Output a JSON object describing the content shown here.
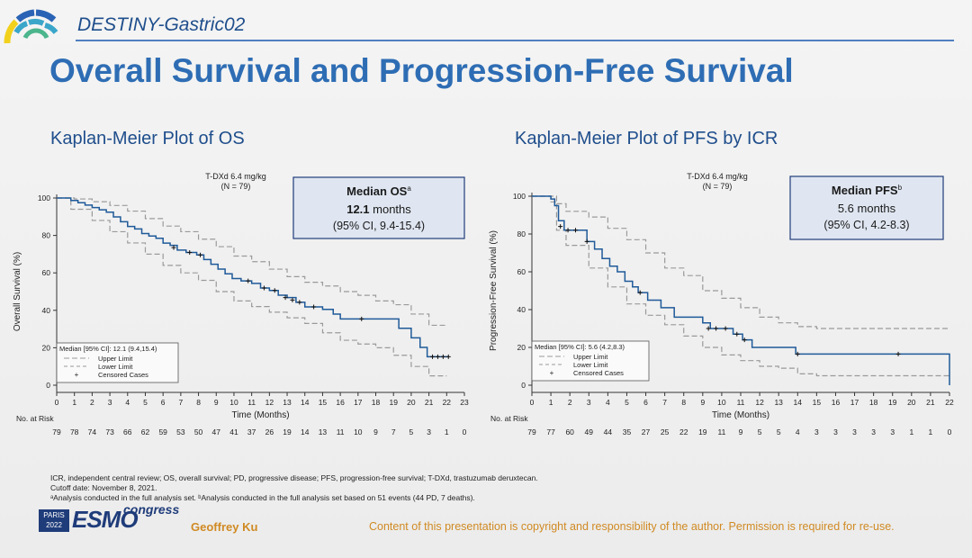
{
  "header": {
    "study_name": "DESTINY-Gastric02",
    "slide_title": "Overall Survival and Progression-Free Survival"
  },
  "colors": {
    "title_blue": "#2e6db4",
    "km_line": "#1f5a99",
    "ci_line": "#9a9a9a",
    "box_fill": "#dfe6f1",
    "box_border": "#1f3c7a",
    "accent_orange": "#d08a23"
  },
  "chart_data": [
    {
      "type": "line",
      "panel_title": "Kaplan-Meier Plot of OS",
      "series_header": "T-DXd 6.4 mg/kg",
      "series_n": "(N = 79)",
      "median_box": {
        "title": "Median OS",
        "title_sup": "a",
        "value": "12.1",
        "unit": " months",
        "ci": "(95% CI, 9.4-15.4)"
      },
      "xlabel": "Time (Months)",
      "ylabel": "Overall Survival (%)",
      "xlim": [
        0,
        23
      ],
      "ylim": [
        0,
        100
      ],
      "xticks": [
        0,
        1,
        2,
        3,
        4,
        5,
        6,
        7,
        8,
        9,
        10,
        11,
        12,
        13,
        14,
        15,
        16,
        17,
        18,
        19,
        20,
        21,
        22,
        23
      ],
      "yticks": [
        0,
        20,
        40,
        60,
        80,
        100
      ],
      "legend": {
        "title": "Median [95% CI]: 12.1 (9.4,15.4)",
        "upper": "Upper Limit",
        "lower": "Lower Limit",
        "censored": "Censored Cases"
      },
      "series": [
        {
          "name": "KM",
          "points": [
            [
              0,
              100
            ],
            [
              0.8,
              98.7
            ],
            [
              1.2,
              97.5
            ],
            [
              1.6,
              96.2
            ],
            [
              2,
              94.9
            ],
            [
              2.4,
              93.7
            ],
            [
              2.8,
              92.4
            ],
            [
              3.2,
              89.9
            ],
            [
              3.6,
              87.3
            ],
            [
              4,
              84.8
            ],
            [
              4.4,
              83.5
            ],
            [
              4.8,
              81
            ],
            [
              5.2,
              79.7
            ],
            [
              5.6,
              78.5
            ],
            [
              6,
              75.9
            ],
            [
              6.4,
              74.7
            ],
            [
              6.8,
              72.2
            ],
            [
              7.3,
              70.9
            ],
            [
              7.9,
              69.6
            ],
            [
              8.3,
              67.1
            ],
            [
              8.7,
              64.6
            ],
            [
              9.1,
              62.0
            ],
            [
              9.5,
              59.5
            ],
            [
              9.9,
              57.0
            ],
            [
              10.4,
              55.7
            ],
            [
              11,
              54.4
            ],
            [
              11.5,
              51.9
            ],
            [
              12,
              50.6
            ],
            [
              12.5,
              48.1
            ],
            [
              13,
              46.8
            ],
            [
              13.5,
              44.3
            ],
            [
              14,
              41.8
            ],
            [
              15,
              40.5
            ],
            [
              15.6,
              38
            ],
            [
              16,
              35.4
            ],
            [
              17.2,
              35.4
            ],
            [
              18.5,
              35.4
            ],
            [
              19.3,
              30.4
            ],
            [
              20,
              25.3
            ],
            [
              20.5,
              20.2
            ],
            [
              20.9,
              15.2
            ],
            [
              22.1,
              15.2
            ]
          ]
        },
        {
          "name": "Upper Limit",
          "points": [
            [
              0,
              100
            ],
            [
              1,
              99.5
            ],
            [
              2,
              98
            ],
            [
              3,
              96
            ],
            [
              4,
              93
            ],
            [
              5,
              89
            ],
            [
              6,
              85
            ],
            [
              7,
              82
            ],
            [
              8,
              78
            ],
            [
              9,
              74
            ],
            [
              10,
              69
            ],
            [
              11,
              66
            ],
            [
              12,
              62
            ],
            [
              13,
              58
            ],
            [
              14,
              55
            ],
            [
              15,
              53
            ],
            [
              16,
              50
            ],
            [
              17,
              48
            ],
            [
              18,
              45
            ],
            [
              19,
              43
            ],
            [
              20,
              38
            ],
            [
              21,
              32
            ],
            [
              22,
              32
            ]
          ]
        },
        {
          "name": "Lower Limit",
          "points": [
            [
              0,
              100
            ],
            [
              0.8,
              94
            ],
            [
              2,
              88
            ],
            [
              3,
              82
            ],
            [
              4,
              76
            ],
            [
              5,
              70
            ],
            [
              6,
              64
            ],
            [
              7,
              60
            ],
            [
              8,
              56
            ],
            [
              9,
              50
            ],
            [
              10,
              45
            ],
            [
              11,
              42
            ],
            [
              12,
              39
            ],
            [
              13,
              36
            ],
            [
              14,
              33
            ],
            [
              15,
              28
            ],
            [
              16,
              24
            ],
            [
              17,
              22
            ],
            [
              18,
              20
            ],
            [
              19,
              16
            ],
            [
              20,
              10
            ],
            [
              21,
              5
            ],
            [
              22,
              5
            ]
          ]
        }
      ],
      "censored": [
        [
          6.6,
          73.5
        ],
        [
          7.5,
          70.9
        ],
        [
          8.1,
          69.6
        ],
        [
          10.8,
          55.7
        ],
        [
          11.7,
          51.9
        ],
        [
          12.3,
          50.6
        ],
        [
          12.9,
          46.8
        ],
        [
          13.3,
          45.5
        ],
        [
          13.7,
          44.3
        ],
        [
          14.5,
          41.8
        ],
        [
          17.2,
          35.4
        ],
        [
          21.2,
          15.2
        ],
        [
          21.5,
          15.2
        ],
        [
          21.8,
          15.2
        ],
        [
          22.1,
          15.2
        ]
      ],
      "at_risk_label": "No. at Risk",
      "at_risk_times": [
        0,
        1,
        2,
        3,
        4,
        5,
        6,
        7,
        8,
        9,
        10,
        11,
        12,
        13,
        14,
        15,
        16,
        17,
        18,
        19,
        20,
        21,
        22,
        23
      ],
      "at_risk": [
        "79",
        "78",
        "74",
        "73",
        "66",
        "62",
        "59",
        "53",
        "50",
        "47",
        "41",
        "37",
        "26",
        "19",
        "14",
        "13",
        "11",
        "10",
        "9",
        "7",
        "5",
        "3",
        "1",
        "0"
      ]
    },
    {
      "type": "line",
      "panel_title": "Kaplan-Meier Plot of PFS by ICR",
      "series_header": "T-DXd 6.4 mg/kg",
      "series_n": "(N = 79)",
      "median_box": {
        "title": "Median PFS",
        "title_sup": "b",
        "value": "5.6",
        "unit": " months",
        "ci": "(95% CI, 4.2-8.3)"
      },
      "xlabel": "Time (Months)",
      "ylabel": "Progression-Free Survival (%)",
      "xlim": [
        0,
        22
      ],
      "ylim": [
        0,
        100
      ],
      "xticks": [
        0,
        1,
        2,
        3,
        4,
        5,
        6,
        7,
        8,
        9,
        10,
        11,
        12,
        13,
        14,
        15,
        16,
        17,
        18,
        19,
        20,
        21,
        22
      ],
      "yticks": [
        0,
        20,
        40,
        60,
        80,
        100
      ],
      "legend": {
        "title": "Median [95% CI]: 5.6 (4.2,8.3)",
        "upper": "Upper Limit",
        "lower": "Lower Limit",
        "censored": "Censored Cases"
      },
      "series": [
        {
          "name": "KM",
          "points": [
            [
              0,
              100
            ],
            [
              1,
              98.5
            ],
            [
              1.2,
              95
            ],
            [
              1.4,
              87
            ],
            [
              1.7,
              82
            ],
            [
              2.6,
              82
            ],
            [
              2.9,
              76
            ],
            [
              3.3,
              72
            ],
            [
              3.7,
              67
            ],
            [
              4.1,
              63
            ],
            [
              4.5,
              60
            ],
            [
              4.9,
              55
            ],
            [
              5.3,
              52
            ],
            [
              5.6,
              49
            ],
            [
              6.1,
              45
            ],
            [
              6.8,
              41
            ],
            [
              7.5,
              36
            ],
            [
              8.5,
              36
            ],
            [
              9,
              33
            ],
            [
              9.4,
              30
            ],
            [
              10.2,
              30
            ],
            [
              10.6,
              27
            ],
            [
              11.1,
              24
            ],
            [
              11.6,
              20
            ],
            [
              13.7,
              20
            ],
            [
              13.9,
              16.5
            ],
            [
              21.9,
              16.5
            ],
            [
              22,
              0
            ]
          ]
        },
        {
          "name": "Upper Limit",
          "points": [
            [
              0,
              100
            ],
            [
              1,
              100
            ],
            [
              1.3,
              96
            ],
            [
              1.8,
              92
            ],
            [
              3,
              89
            ],
            [
              4,
              83
            ],
            [
              5,
              77
            ],
            [
              6,
              70
            ],
            [
              7,
              62
            ],
            [
              8,
              58
            ],
            [
              9,
              50
            ],
            [
              10,
              46
            ],
            [
              11,
              41
            ],
            [
              12,
              36
            ],
            [
              13,
              33
            ],
            [
              14,
              31
            ],
            [
              15,
              30
            ],
            [
              22,
              30
            ]
          ]
        },
        {
          "name": "Lower Limit",
          "points": [
            [
              0,
              100
            ],
            [
              1,
              97
            ],
            [
              1.3,
              82
            ],
            [
              1.8,
              74
            ],
            [
              3,
              62
            ],
            [
              4,
              52
            ],
            [
              5,
              43
            ],
            [
              6,
              37
            ],
            [
              7,
              32
            ],
            [
              8,
              26
            ],
            [
              9,
              20
            ],
            [
              10,
              16
            ],
            [
              11,
              13
            ],
            [
              12,
              10
            ],
            [
              13,
              9
            ],
            [
              14,
              6
            ],
            [
              15,
              5
            ],
            [
              22,
              5
            ]
          ]
        }
      ],
      "censored": [
        [
          1.5,
          84
        ],
        [
          1.9,
          82
        ],
        [
          2.3,
          82
        ],
        [
          2.9,
          76
        ],
        [
          5.7,
          49
        ],
        [
          9.3,
          30
        ],
        [
          9.7,
          30
        ],
        [
          10.2,
          30
        ],
        [
          10.8,
          27
        ],
        [
          11.2,
          24
        ],
        [
          14,
          16.5
        ],
        [
          19.3,
          16.5
        ]
      ],
      "at_risk_label": "No. at Risk",
      "at_risk_times": [
        0,
        1,
        2,
        3,
        4,
        5,
        6,
        7,
        8,
        9,
        10,
        11,
        12,
        13,
        14,
        15,
        16,
        17,
        18,
        19,
        20,
        21,
        22
      ],
      "at_risk": [
        "79",
        "77",
        "60",
        "49",
        "44",
        "35",
        "27",
        "25",
        "22",
        "19",
        "11",
        "9",
        "5",
        "5",
        "4",
        "3",
        "3",
        "3",
        "3",
        "3",
        "1",
        "1",
        "0"
      ]
    }
  ],
  "footnotes": {
    "line1": "ICR, independent central review; OS, overall survival; PD, progressive disease; PFS, progression-free survival; T-DXd, trastuzumab deruxtecan.",
    "line2": "Cutoff date: November 8, 2021.",
    "line3": "ᵃAnalysis conducted in the full analysis set. ᵇAnalysis conducted in the full analysis set based on 51 events (44 PD, 7 deaths)."
  },
  "footer": {
    "city": "PARIS",
    "year": "2022",
    "esmo": "ESMO",
    "congress": "congress",
    "presenter": "Geoffrey Ku",
    "copyright": "Content of this presentation is copyright and responsibility of the author. Permission is required for re-use."
  }
}
